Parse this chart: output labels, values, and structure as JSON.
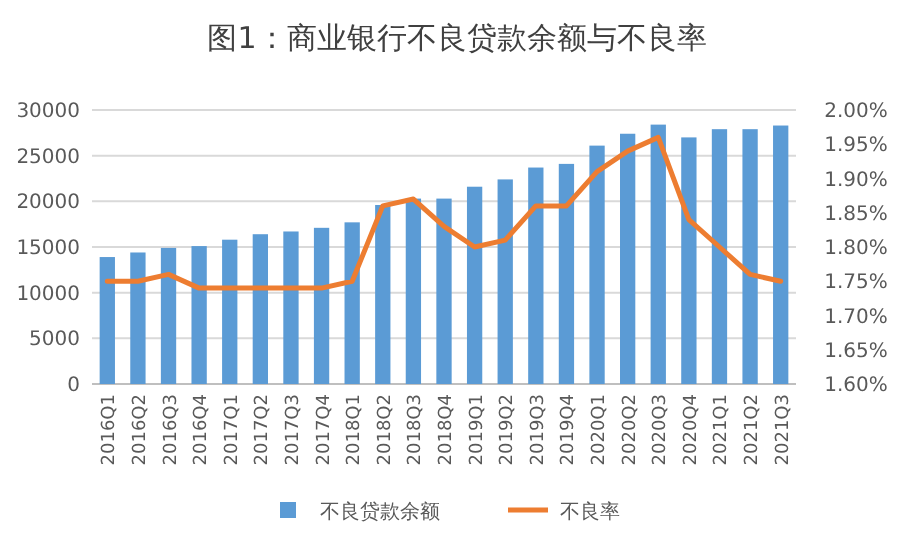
{
  "chart_data": {
    "type": "bar",
    "title": "图1：商业银行不良贷款余额与不良率",
    "categories": [
      "2016Q1",
      "2016Q2",
      "2016Q3",
      "2016Q4",
      "2017Q1",
      "2017Q2",
      "2017Q3",
      "2017Q4",
      "2018Q1",
      "2018Q2",
      "2018Q3",
      "2018Q4",
      "2019Q1",
      "2019Q2",
      "2019Q3",
      "2019Q4",
      "2020Q1",
      "2020Q2",
      "2020Q3",
      "2020Q4",
      "2021Q1",
      "2021Q2",
      "2021Q3"
    ],
    "series": [
      {
        "name": "不良贷款余额",
        "color": "#5b9bd5",
        "values": [
          13900,
          14400,
          14900,
          15100,
          15800,
          16400,
          16700,
          17100,
          17700,
          19600,
          20300,
          20300,
          21600,
          22400,
          23700,
          24100,
          26100,
          27400,
          28400,
          27000,
          27900,
          27900,
          28300
        ]
      },
      {
        "name": "不良率",
        "type": "line",
        "axis": "y2",
        "color": "#ed7d31",
        "values": [
          1.75,
          1.75,
          1.76,
          1.74,
          1.74,
          1.74,
          1.74,
          1.74,
          1.75,
          1.86,
          1.87,
          1.83,
          1.8,
          1.81,
          1.86,
          1.86,
          1.91,
          1.94,
          1.96,
          1.84,
          1.8,
          1.76,
          1.75
        ]
      }
    ],
    "ylim": [
      0,
      30000
    ],
    "yticks": [
      0,
      5000,
      10000,
      15000,
      20000,
      25000,
      30000
    ],
    "y2lim": [
      1.6,
      2.0
    ],
    "y2ticks": [
      {
        "value": 1.6,
        "label": "1.60%"
      },
      {
        "value": 1.65,
        "label": "1.65%"
      },
      {
        "value": 1.7,
        "label": "1.70%"
      },
      {
        "value": 1.75,
        "label": "1.75%"
      },
      {
        "value": 1.8,
        "label": "1.80%"
      },
      {
        "value": 1.85,
        "label": "1.85%"
      },
      {
        "value": 1.9,
        "label": "1.90%"
      },
      {
        "value": 1.95,
        "label": "1.95%"
      },
      {
        "value": 2.0,
        "label": "2.00%"
      }
    ],
    "grid": "y",
    "legend": "bottom",
    "marker": "none",
    "line_style": "solid"
  }
}
